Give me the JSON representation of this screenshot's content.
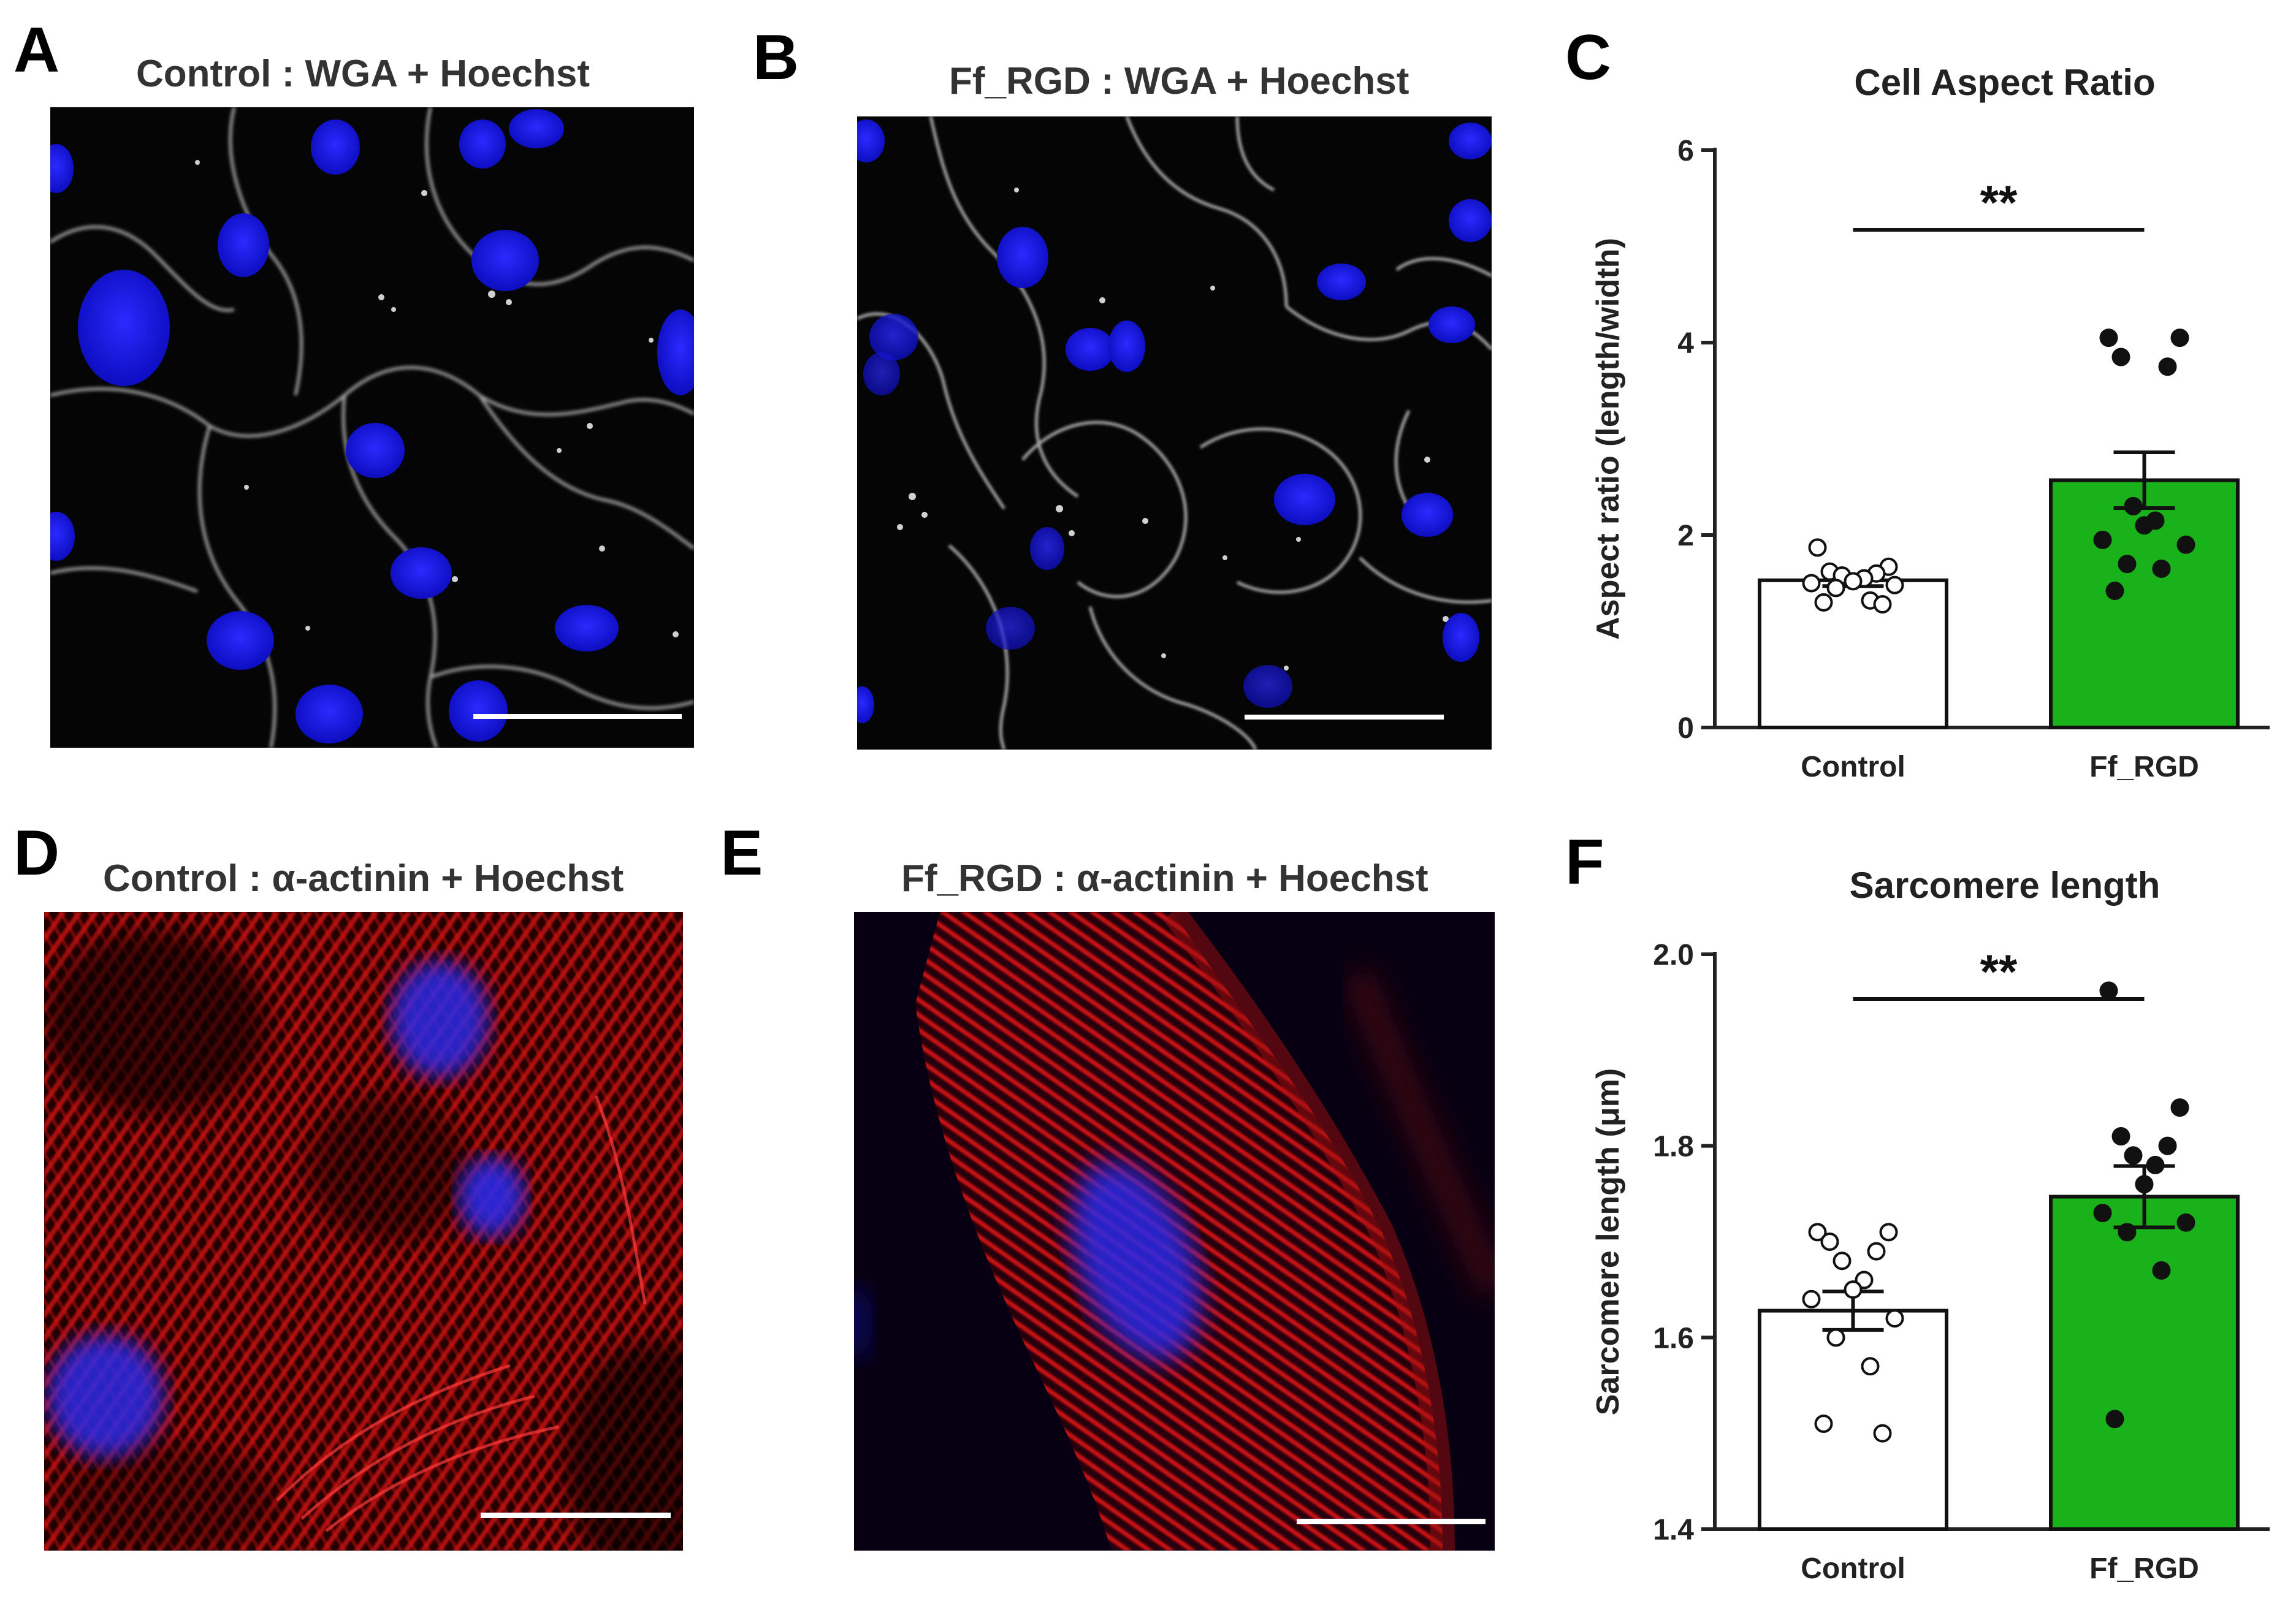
{
  "panels": {
    "A": {
      "letter": "A",
      "title": "Control : WGA  + Hoechst"
    },
    "B": {
      "letter": "B",
      "title": "Ff_RGD : WGA  + Hoechst"
    },
    "C": {
      "letter": "C"
    },
    "D": {
      "letter": "D",
      "title": "Control : α-actinin + Hoechst"
    },
    "E": {
      "letter": "E",
      "title": "Ff_RGD : α-actinin + Hoechst"
    },
    "F": {
      "letter": "F"
    }
  },
  "colors": {
    "control_bar": "#ffffff",
    "ffrgd_bar": "#1ab21a",
    "wga_stain": "#d8d8d8",
    "hoechst_stain": "#1a1aff",
    "actinin_stain": "#e01a1a"
  },
  "chart_data": [
    {
      "type": "bar",
      "panel": "C",
      "title": "Cell Aspect Ratio",
      "xlabel": "",
      "ylabel": "Aspect ratio (length/width)",
      "categories": [
        "Control",
        "Ff_RGD"
      ],
      "values": [
        1.53,
        2.57
      ],
      "error_sem": [
        0.06,
        0.29
      ],
      "ylim": [
        0,
        6
      ],
      "yticks": [
        "0",
        "2",
        "4",
        "6"
      ],
      "significance": "**",
      "points": {
        "Control": [
          1.87,
          1.67,
          1.62,
          1.6,
          1.58,
          1.55,
          1.52,
          1.5,
          1.48,
          1.45,
          1.32,
          1.3,
          1.28
        ],
        "Ff_RGD": [
          4.05,
          4.05,
          3.85,
          3.75,
          2.3,
          2.15,
          2.1,
          1.95,
          1.9,
          1.7,
          1.65,
          1.42
        ]
      }
    },
    {
      "type": "bar",
      "panel": "F",
      "title": "Sarcomere length",
      "xlabel": "",
      "ylabel": "Sarcomere length (μm)",
      "categories": [
        "Control",
        "Ff_RGD"
      ],
      "values": [
        1.628,
        1.747
      ],
      "error_sem": [
        0.02,
        0.032
      ],
      "ylim": [
        1.4,
        2.0
      ],
      "yticks": [
        "1.4",
        "1.6",
        "1.8",
        "2.0"
      ],
      "significance": "**",
      "points": {
        "Control": [
          1.71,
          1.71,
          1.7,
          1.69,
          1.68,
          1.66,
          1.65,
          1.64,
          1.62,
          1.6,
          1.57,
          1.51,
          1.5
        ],
        "Ff_RGD": [
          1.962,
          1.84,
          1.81,
          1.8,
          1.79,
          1.78,
          1.76,
          1.73,
          1.72,
          1.71,
          1.67,
          1.515
        ]
      }
    }
  ]
}
